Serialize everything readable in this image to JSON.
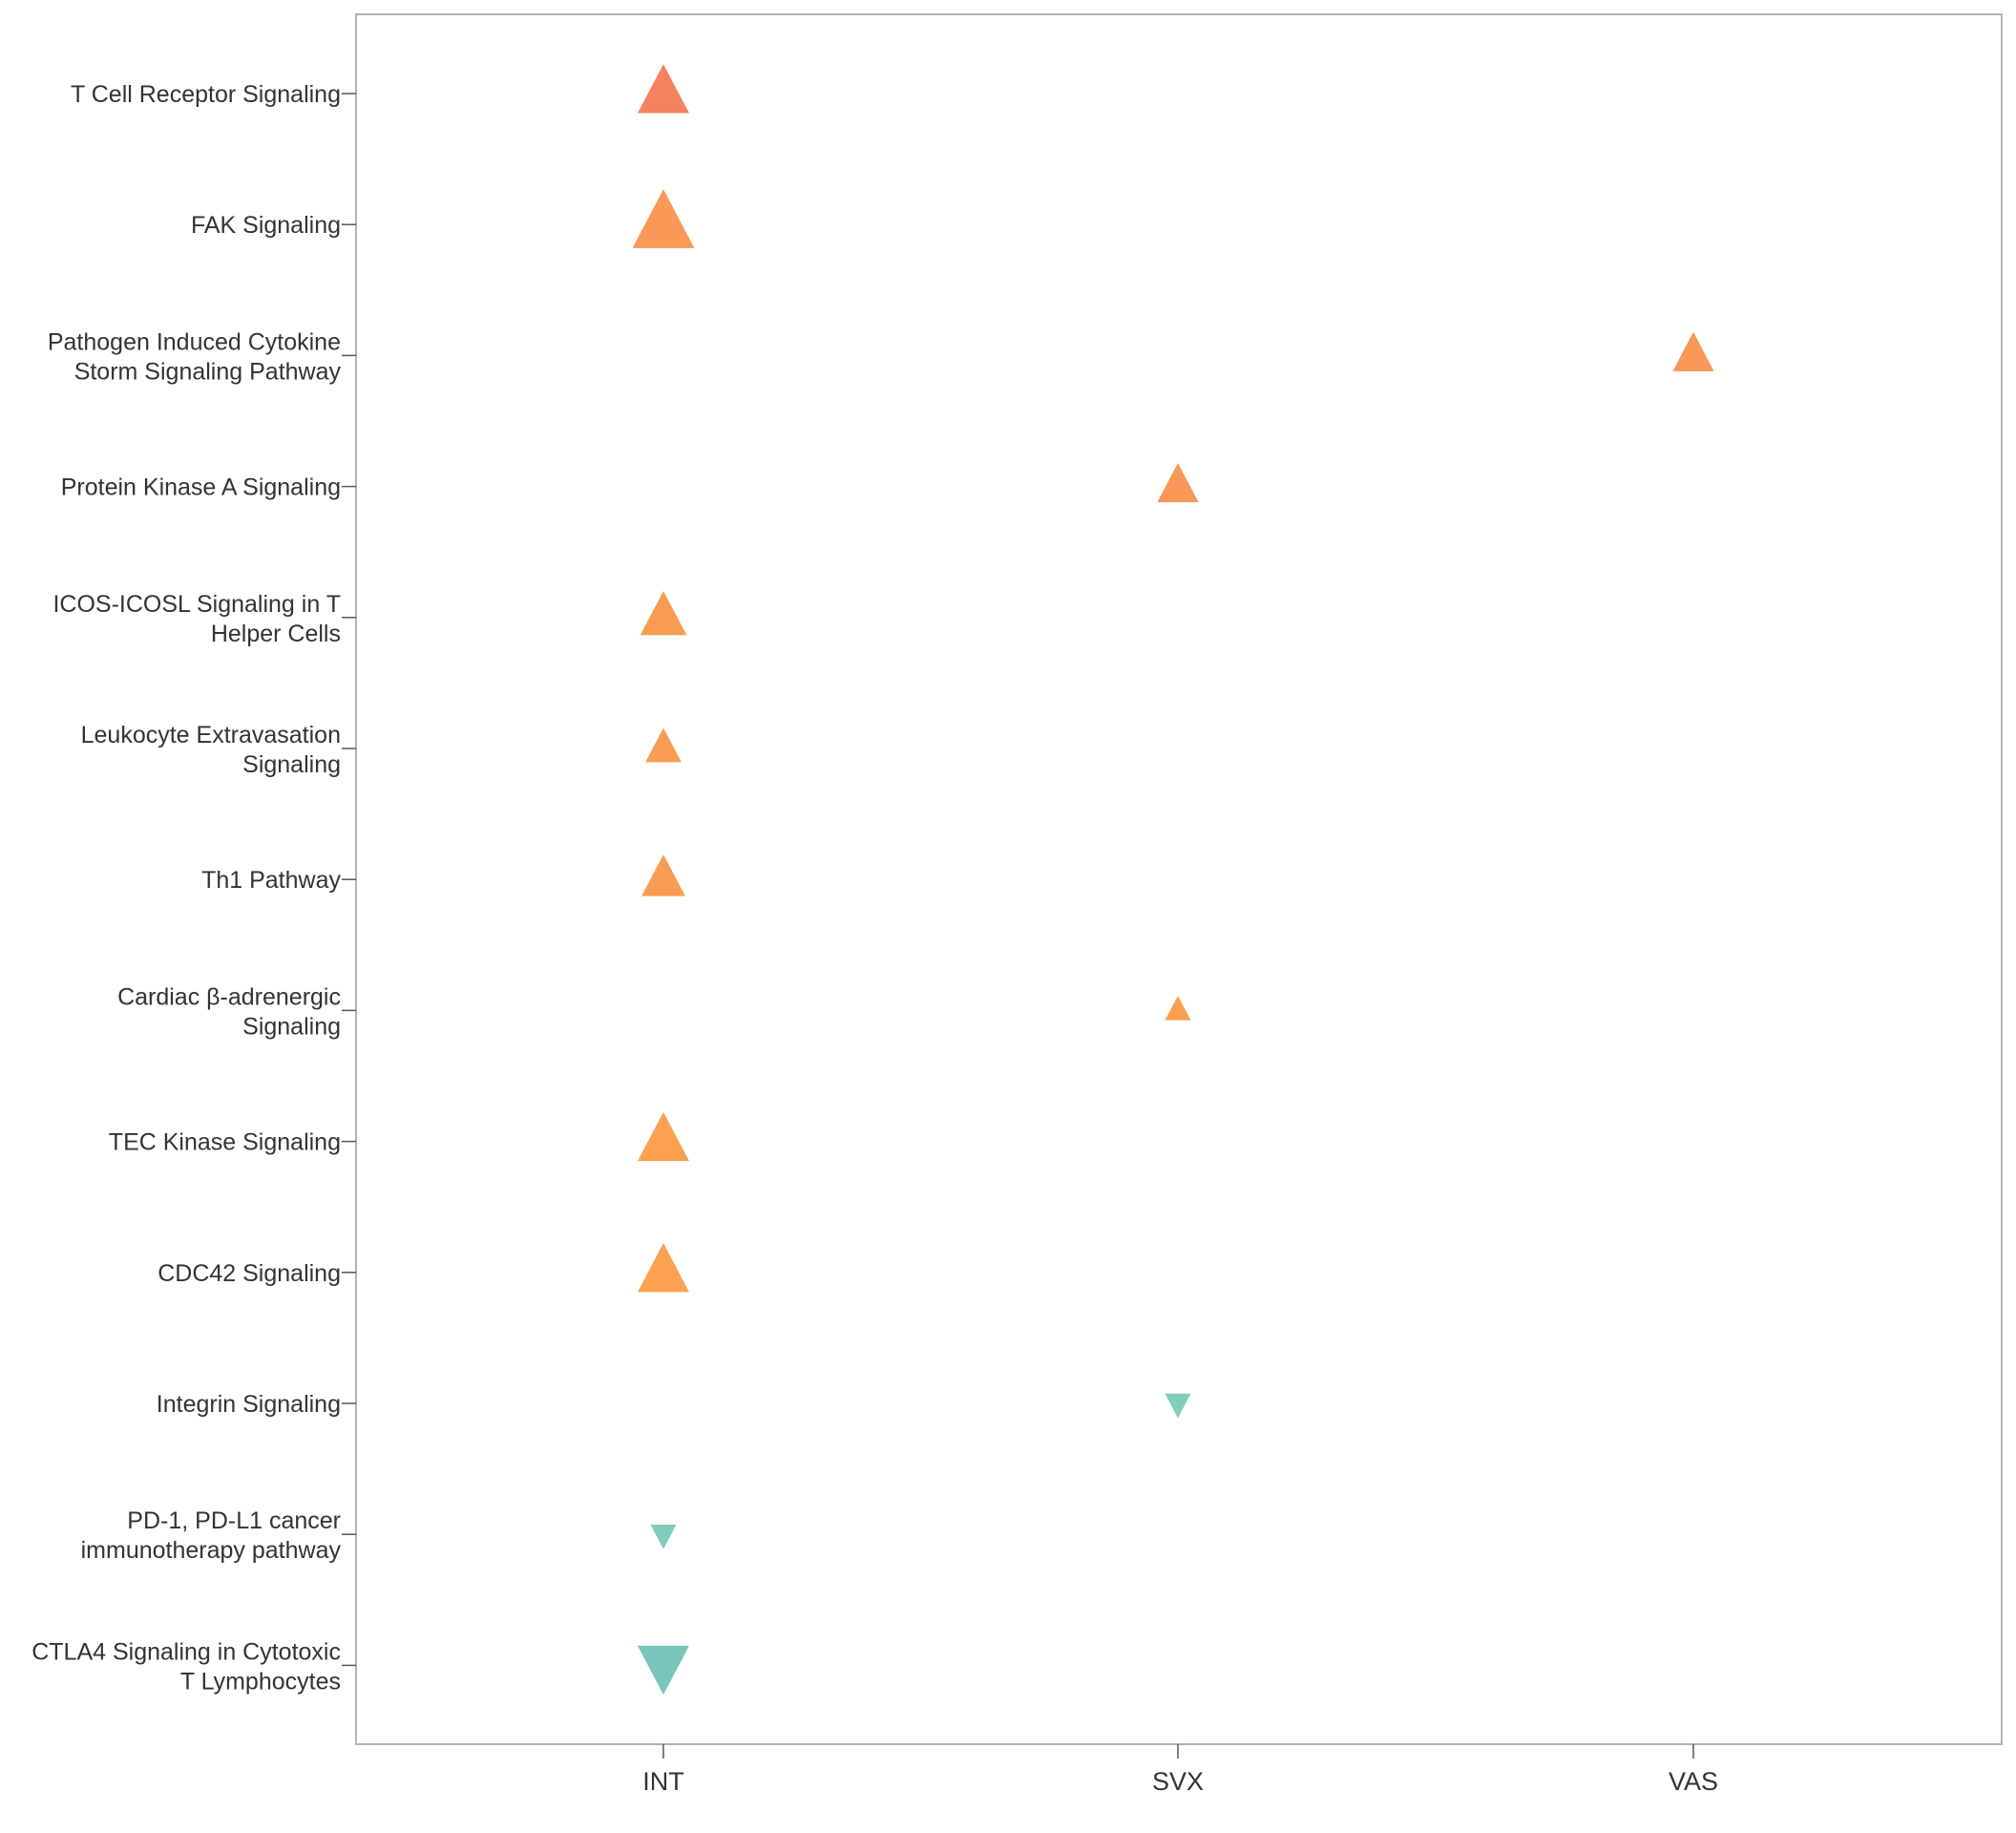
{
  "chart_data": {
    "type": "scatter",
    "title": "",
    "xlabel": "",
    "ylabel": "",
    "categories_x": [
      "INT",
      "SVX",
      "VAS"
    ],
    "categories_y": [
      [
        "T Cell Receptor Signaling"
      ],
      [
        "FAK Signaling"
      ],
      [
        "Pathogen Induced Cytokine",
        "Storm Signaling Pathway"
      ],
      [
        "Protein Kinase A Signaling"
      ],
      [
        "ICOS-ICOSL Signaling in T",
        "Helper Cells"
      ],
      [
        "Leukocyte Extravasation",
        "Signaling"
      ],
      [
        "Th1 Pathway"
      ],
      [
        "Cardiac β-adrenergic",
        "Signaling"
      ],
      [
        "TEC Kinase Signaling"
      ],
      [
        "CDC42 Signaling"
      ],
      [
        "Integrin Signaling"
      ],
      [
        "PD-1, PD-L1 cancer",
        "immunotherapy pathway"
      ],
      [
        "CTLA4 Signaling in Cytotoxic",
        "T Lymphocytes"
      ]
    ],
    "grid": false,
    "legend": "none",
    "points": [
      {
        "row": 0,
        "x": "INT",
        "direction": "up",
        "size": 4.0,
        "color": "#f5825f"
      },
      {
        "row": 1,
        "x": "INT",
        "direction": "up",
        "size": 4.8,
        "color": "#f99857"
      },
      {
        "row": 2,
        "x": "VAS",
        "direction": "up",
        "size": 3.2,
        "color": "#f99857"
      },
      {
        "row": 3,
        "x": "SVX",
        "direction": "up",
        "size": 3.2,
        "color": "#f99857"
      },
      {
        "row": 4,
        "x": "INT",
        "direction": "up",
        "size": 3.6,
        "color": "#f99c53"
      },
      {
        "row": 5,
        "x": "INT",
        "direction": "up",
        "size": 2.8,
        "color": "#f99c53"
      },
      {
        "row": 6,
        "x": "INT",
        "direction": "up",
        "size": 3.4,
        "color": "#f99c53"
      },
      {
        "row": 7,
        "x": "SVX",
        "direction": "up",
        "size": 2.0,
        "color": "#f9a050"
      },
      {
        "row": 8,
        "x": "INT",
        "direction": "up",
        "size": 4.0,
        "color": "#fba14f"
      },
      {
        "row": 9,
        "x": "INT",
        "direction": "up",
        "size": 4.0,
        "color": "#fba14f"
      },
      {
        "row": 10,
        "x": "SVX",
        "direction": "down",
        "size": 2.0,
        "color": "#7fcdbb"
      },
      {
        "row": 11,
        "x": "INT",
        "direction": "down",
        "size": 2.0,
        "color": "#7fcdbb"
      },
      {
        "row": 12,
        "x": "INT",
        "direction": "down",
        "size": 4.0,
        "color": "#78c6b9"
      }
    ]
  }
}
